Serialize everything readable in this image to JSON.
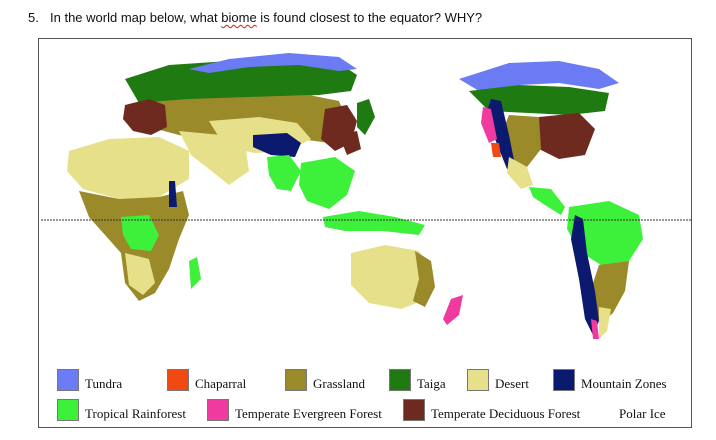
{
  "question": {
    "number": "5.",
    "text_before": "In the world map below, what ",
    "misspelled_word": "biome",
    "text_after": " is found closest to the equator? WHY?"
  },
  "legend": [
    {
      "label": "Tundra",
      "color": "#6b7bf4"
    },
    {
      "label": "Chaparral",
      "color": "#f04a12"
    },
    {
      "label": "Grassland",
      "color": "#9a8a2a"
    },
    {
      "label": "Taiga",
      "color": "#1f7a12"
    },
    {
      "label": "Desert",
      "color": "#e6e08a"
    },
    {
      "label": "Mountain Zones",
      "color": "#0b1a6e"
    },
    {
      "label": "Tropical Rainforest",
      "color": "#3df03a"
    },
    {
      "label": "Temperate Evergreen Forest",
      "color": "#f03aa0"
    },
    {
      "label": "Temperate Deciduous Forest",
      "color": "#6e2a1e"
    },
    {
      "label": "Polar Ice",
      "color": "#ffffff"
    }
  ]
}
